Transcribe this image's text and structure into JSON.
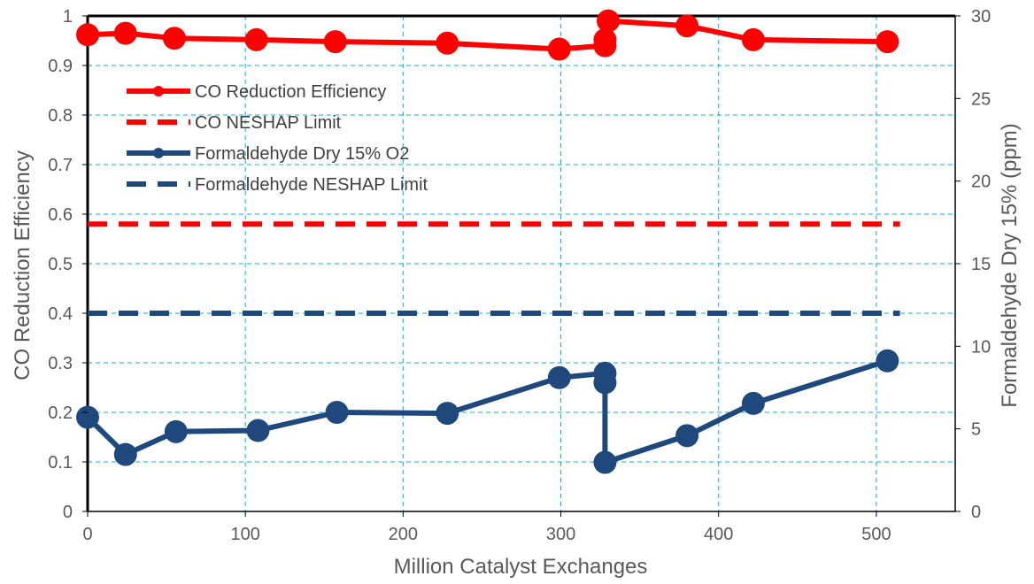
{
  "chart_data": {
    "type": "line",
    "xlabel": "Million Catalyst Exchanges",
    "ylabel": "CO Reduction Efficiency",
    "y2label": "Formaldehyde Dry 15% (ppm)",
    "xlim": [
      0,
      550
    ],
    "ylim": [
      0,
      1
    ],
    "y2lim": [
      0,
      30
    ],
    "xticks": [
      0,
      100,
      200,
      300,
      400,
      500
    ],
    "xtick_labels": [
      "0",
      "100",
      "200",
      "300",
      "400",
      "500"
    ],
    "yticks": [
      0,
      0.1,
      0.2,
      0.3,
      0.4,
      0.5,
      0.6,
      0.7,
      0.8,
      0.9,
      1
    ],
    "ytick_labels": [
      "0",
      "0.1",
      "0.2",
      "0.3",
      "0.4",
      "0.5",
      "0.6",
      "0.7",
      "0.8",
      "0.9",
      "1"
    ],
    "y2ticks": [
      0,
      5,
      10,
      15,
      20,
      25,
      30
    ],
    "y2tick_labels": [
      "0",
      "5",
      "10",
      "15",
      "20",
      "25",
      "30"
    ],
    "grid": true,
    "legend_position": "upper-left",
    "series": [
      {
        "name": "CO Reduction Efficiency",
        "axis": "left",
        "style": "solid-markers",
        "color": "#ff0000",
        "x": [
          0,
          24,
          55,
          107,
          157,
          228,
          299,
          328,
          328,
          330,
          380,
          422,
          507
        ],
        "y": [
          0.962,
          0.965,
          0.955,
          0.952,
          0.948,
          0.945,
          0.933,
          0.94,
          0.952,
          0.99,
          0.98,
          0.952,
          0.948
        ]
      },
      {
        "name": "CO NESHAP Limit",
        "axis": "left",
        "style": "dashed",
        "color": "#ff0000",
        "x": [
          0,
          515
        ],
        "y": [
          0.58,
          0.58
        ]
      },
      {
        "name": "Formaldehyde Dry 15% O2",
        "axis": "right",
        "style": "solid-markers",
        "color": "#1f497d",
        "x": [
          0,
          24,
          56,
          108,
          158,
          228,
          299,
          328,
          328,
          328,
          380,
          422,
          507
        ],
        "y": [
          5.7,
          3.45,
          4.83,
          4.9,
          6.0,
          5.94,
          8.1,
          8.37,
          7.8,
          2.97,
          4.59,
          6.54,
          9.12
        ]
      },
      {
        "name": "Formaldehyde NESHAP Limit",
        "axis": "right",
        "style": "dashed",
        "color": "#1f497d",
        "x": [
          0,
          515
        ],
        "y": [
          12,
          12
        ]
      }
    ]
  }
}
